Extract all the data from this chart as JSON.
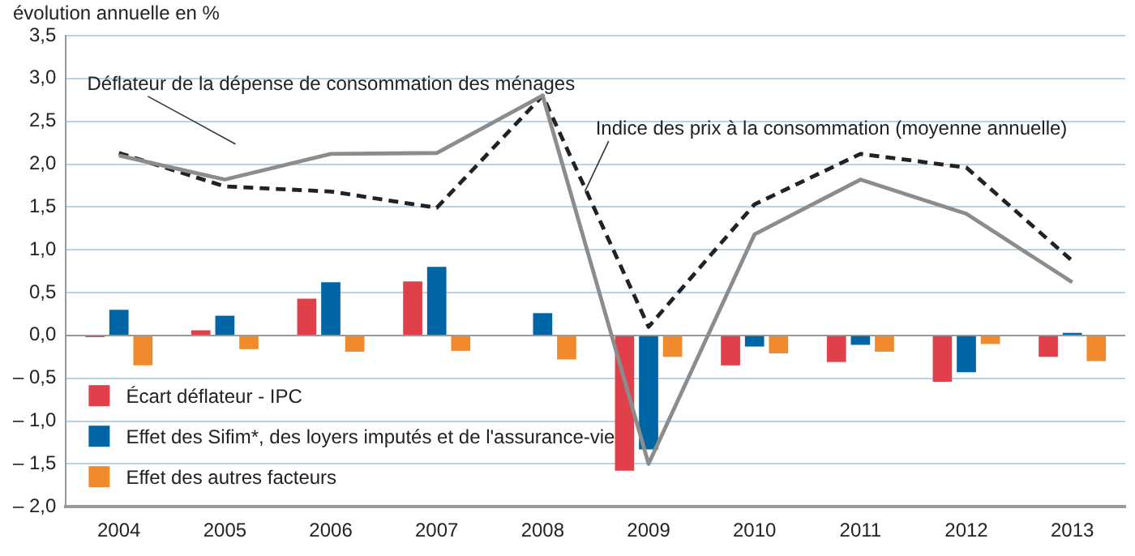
{
  "chart_data": {
    "type": "bar",
    "ylabel": "évolution annuelle en %",
    "categories": [
      "2004",
      "2005",
      "2006",
      "2007",
      "2008",
      "2009",
      "2010",
      "2011",
      "2012",
      "2013"
    ],
    "series": [
      {
        "name": "Écart déflateur - IPC",
        "color": "#e0404a",
        "values": [
          -0.02,
          0.06,
          0.43,
          0.63,
          null,
          -1.58,
          -0.35,
          -0.31,
          -0.54,
          -0.25
        ]
      },
      {
        "name": "Effet des Sifim*, des loyers imputés et de l'assurance-vie",
        "color": "#0065a4",
        "values": [
          0.3,
          0.23,
          0.62,
          0.8,
          0.26,
          -1.33,
          -0.13,
          -0.11,
          -0.43,
          0.03
        ]
      },
      {
        "name": "Effet des autres facteurs",
        "color": "#f08a2c",
        "values": [
          -0.35,
          -0.16,
          -0.19,
          -0.18,
          -0.28,
          -0.25,
          -0.21,
          -0.19,
          -0.1,
          -0.3
        ]
      },
      {
        "name": "Déflateur de la dépense de consommation des ménages",
        "type": "line",
        "color": "#8c8c8c",
        "line_style": "solid",
        "values": [
          2.1,
          1.82,
          2.12,
          2.13,
          2.8,
          -1.5,
          1.18,
          1.82,
          1.42,
          0.62
        ]
      },
      {
        "name": "Indice des prix à la consommation (moyenne annuelle)",
        "type": "line",
        "color": "#222222",
        "line_style": "dashed",
        "values": [
          2.13,
          1.74,
          1.68,
          1.49,
          2.8,
          0.1,
          1.53,
          2.12,
          1.96,
          0.87
        ]
      }
    ],
    "ylim": [
      -2,
      3.5
    ],
    "yticks": [
      {
        "value": -2,
        "label": "– 2,0"
      },
      {
        "value": -1.5,
        "label": "– 1,5"
      },
      {
        "value": -1,
        "label": "– 1,0"
      },
      {
        "value": -0.5,
        "label": "– 0,5"
      },
      {
        "value": 0,
        "label": "0,0"
      },
      {
        "value": 0.5,
        "label": "0,5"
      },
      {
        "value": 1,
        "label": "1,0"
      },
      {
        "value": 1.5,
        "label": "1,5"
      },
      {
        "value": 2,
        "label": "2,0"
      },
      {
        "value": 2.5,
        "label": "2,5"
      },
      {
        "value": 3,
        "label": "3,0"
      },
      {
        "value": 3.5,
        "label": "3,5"
      }
    ],
    "grid": "y",
    "legend": "bottom left",
    "marker": "none"
  }
}
